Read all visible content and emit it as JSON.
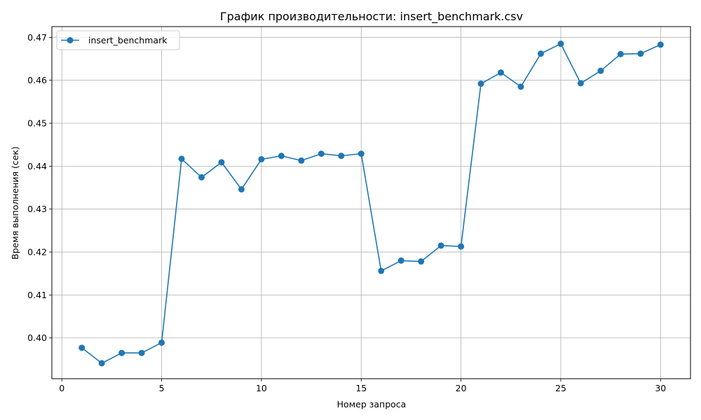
{
  "chart_data": {
    "type": "line",
    "title": "График производительности: insert_benchmark.csv",
    "xlabel": "Номер запроса",
    "ylabel": "Время выполнения (сек)",
    "xlim": [
      -0.5,
      31.5
    ],
    "ylim": [
      0.3905,
      0.4725
    ],
    "x_ticks": [
      0,
      5,
      10,
      15,
      20,
      25,
      30
    ],
    "x_tick_labels": [
      "0",
      "5",
      "10",
      "15",
      "20",
      "25",
      "30"
    ],
    "y_ticks": [
      0.4,
      0.41,
      0.42,
      0.43,
      0.44,
      0.45,
      0.46,
      0.47
    ],
    "y_tick_labels": [
      "0.40",
      "0.41",
      "0.42",
      "0.43",
      "0.44",
      "0.45",
      "0.46",
      "0.47"
    ],
    "grid": true,
    "legend_position": "top-left",
    "series": [
      {
        "name": "insert_benchmark",
        "color": "#1f77b4",
        "marker": "circle",
        "x": [
          1,
          2,
          3,
          4,
          5,
          6,
          7,
          8,
          9,
          10,
          11,
          12,
          13,
          14,
          15,
          16,
          17,
          18,
          19,
          20,
          21,
          22,
          23,
          24,
          25,
          26,
          27,
          28,
          29,
          30
        ],
        "values": [
          0.3977,
          0.3941,
          0.3965,
          0.3965,
          0.3989,
          0.4417,
          0.4374,
          0.4409,
          0.4346,
          0.4416,
          0.4424,
          0.4413,
          0.4429,
          0.4424,
          0.4429,
          0.4156,
          0.418,
          0.4178,
          0.4215,
          0.4213,
          0.4592,
          0.4618,
          0.4585,
          0.4662,
          0.4685,
          0.4593,
          0.4622,
          0.4661,
          0.4662,
          0.4683
        ]
      }
    ]
  }
}
